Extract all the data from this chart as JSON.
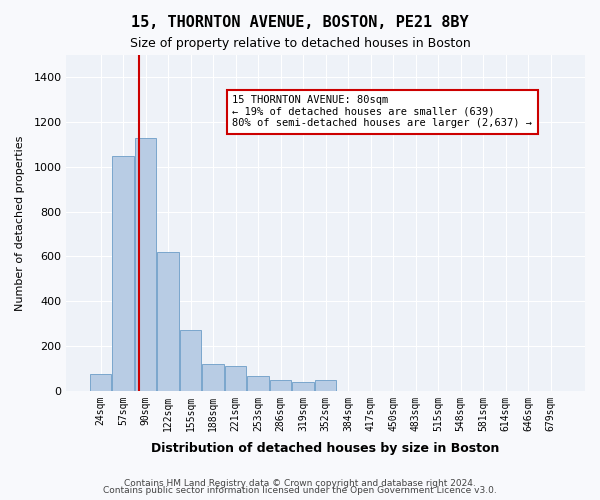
{
  "title1": "15, THORNTON AVENUE, BOSTON, PE21 8BY",
  "title2": "Size of property relative to detached houses in Boston",
  "xlabel": "Distribution of detached houses by size in Boston",
  "ylabel": "Number of detached properties",
  "categories": [
    "24sqm",
    "57sqm",
    "90sqm",
    "122sqm",
    "155sqm",
    "188sqm",
    "221sqm",
    "253sqm",
    "286sqm",
    "319sqm",
    "352sqm",
    "384sqm",
    "417sqm",
    "450sqm",
    "483sqm",
    "515sqm",
    "548sqm",
    "581sqm",
    "614sqm",
    "646sqm",
    "679sqm"
  ],
  "values": [
    75,
    1050,
    1130,
    620,
    270,
    120,
    110,
    65,
    50,
    40,
    50,
    0,
    0,
    0,
    0,
    0,
    0,
    0,
    0,
    0,
    0
  ],
  "bar_color": "#b8cce4",
  "bar_edge_color": "#7aa6cc",
  "red_line_index": 1.5,
  "annotation_text": "15 THORNTON AVENUE: 80sqm\n← 19% of detached houses are smaller (639)\n80% of semi-detached houses are larger (2,637) →",
  "annotation_box_color": "#ffffff",
  "annotation_box_edge": "#cc0000",
  "ylim": [
    0,
    1500
  ],
  "yticks": [
    0,
    200,
    400,
    600,
    800,
    1000,
    1200,
    1400
  ],
  "footer1": "Contains HM Land Registry data © Crown copyright and database right 2024.",
  "footer2": "Contains public sector information licensed under the Open Government Licence v3.0.",
  "bg_color": "#eef2f8",
  "plot_bg_color": "#eef2f8"
}
